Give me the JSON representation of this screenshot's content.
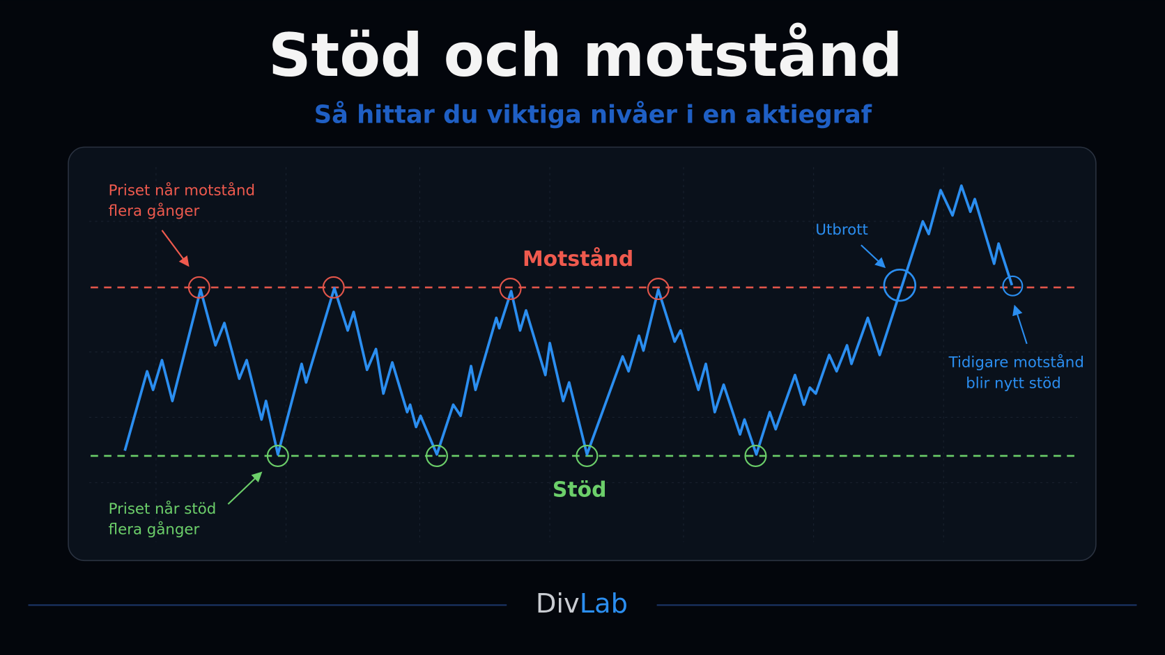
{
  "header": {
    "title": "Stöd och motstånd",
    "subtitle": "Så hittar du viktiga nivåer i en aktiegraf"
  },
  "levels": {
    "resistance": "Motstånd",
    "support": "Stöd"
  },
  "annotations": {
    "resistance_touches": [
      "Priset når motstånd",
      "flera gånger"
    ],
    "support_touches": [
      "Priset når stöd",
      "flera gånger"
    ],
    "breakout": "Utbrott",
    "retest": [
      "Tidigare motstånd",
      "blir nytt stöd"
    ]
  },
  "footer": {
    "brand_part1": "Div",
    "brand_part2": "Lab"
  }
}
